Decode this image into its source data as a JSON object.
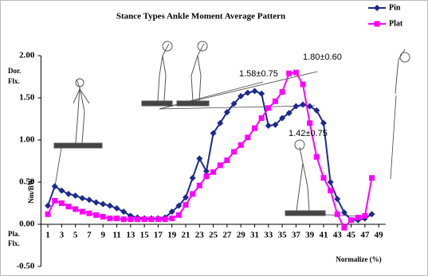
{
  "chart_data": {
    "type": "line",
    "title": "Stance Types Ankle Moment Average Pattern",
    "y_label": "Nm/BW",
    "x_label": "Normalize (%)",
    "x": [
      1,
      2,
      3,
      4,
      5,
      6,
      7,
      8,
      9,
      10,
      11,
      12,
      13,
      14,
      15,
      16,
      17,
      18,
      19,
      20,
      21,
      22,
      23,
      24,
      25,
      26,
      27,
      28,
      29,
      30,
      31,
      32,
      33,
      34,
      35,
      36,
      37,
      38,
      39,
      40,
      41,
      42,
      43,
      44,
      45,
      46,
      47,
      48
    ],
    "series": [
      {
        "name": "Pin",
        "color": "#1c2a8c",
        "marker": "diamond",
        "values": [
          0.22,
          0.45,
          0.4,
          0.36,
          0.34,
          0.31,
          0.29,
          0.26,
          0.24,
          0.22,
          0.19,
          0.15,
          0.1,
          0.08,
          0.07,
          0.07,
          0.07,
          0.08,
          0.15,
          0.22,
          0.32,
          0.55,
          0.78,
          0.63,
          1.08,
          1.2,
          1.33,
          1.43,
          1.52,
          1.56,
          1.58,
          1.55,
          1.17,
          1.18,
          1.26,
          1.32,
          1.4,
          1.42,
          1.4,
          1.35,
          1.2,
          0.5,
          0.3,
          0.14,
          0.05,
          0.05,
          0.07,
          0.12
        ]
      },
      {
        "name": "Plat",
        "color": "#ff00ff",
        "marker": "square",
        "values": [
          0.12,
          0.28,
          0.25,
          0.21,
          0.18,
          0.15,
          0.13,
          0.11,
          0.09,
          0.07,
          0.07,
          0.06,
          0.06,
          0.06,
          0.06,
          0.06,
          0.06,
          0.06,
          0.07,
          0.11,
          0.23,
          0.36,
          0.46,
          0.57,
          0.62,
          0.7,
          0.76,
          0.86,
          0.94,
          1.03,
          1.14,
          1.26,
          1.38,
          1.46,
          1.57,
          1.79,
          1.8,
          1.66,
          1.2,
          0.8,
          0.55,
          0.4,
          0.12,
          -0.04,
          0.05,
          0.08,
          0.1,
          0.55
        ]
      }
    ],
    "xlim": [
      0,
      50
    ],
    "xticks": [
      1,
      3,
      5,
      7,
      9,
      11,
      13,
      15,
      17,
      19,
      21,
      23,
      25,
      27,
      29,
      31,
      33,
      35,
      37,
      39,
      41,
      43,
      45,
      47,
      49
    ],
    "ylim": [
      -0.5,
      2.0
    ],
    "yticks": [
      {
        "value": 2.0,
        "label": "2.00"
      },
      {
        "value": 1.5,
        "label": "1.50"
      },
      {
        "value": 1.0,
        "label": "1.00"
      },
      {
        "value": 0.5,
        "label": "0.50"
      },
      {
        "value": 0.0,
        "label": "0.00"
      },
      {
        "value": -0.5,
        "label": "-0.50"
      }
    ],
    "grid": false,
    "legend": "top-right",
    "annotations": [
      "1.58±0.75",
      "1.80±0.60",
      "1.42±0.75",
      "Dor.",
      "Flx.",
      "Pla.",
      "Flx."
    ]
  }
}
